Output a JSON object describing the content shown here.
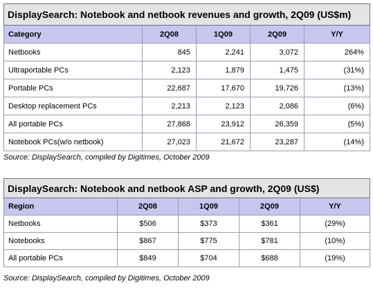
{
  "table1": {
    "title": "DisplaySearch: Notebook and netbook revenues and growth, 2Q09 (US$m)",
    "headers": [
      "Category",
      "2Q08",
      "1Q09",
      "2Q09",
      "Y/Y"
    ],
    "rows": [
      [
        "Netbooks",
        "845",
        "2,241",
        "3,072",
        "264%"
      ],
      [
        "Ultraportable PCs",
        "2,123",
        "1,879",
        "1,475",
        "(31%)"
      ],
      [
        "Portable PCs",
        "22,687",
        "17,670",
        "19,726",
        "(13%)"
      ],
      [
        "Desktop replacement PCs",
        "2,213",
        "2,123",
        "2,086",
        "(6%)"
      ],
      [
        "All portable PCs",
        "27,868",
        "23,912",
        "26,359",
        "(5%)"
      ],
      [
        "Notebook PCs(w/o netbook)",
        "27,023",
        "21,672",
        "23,287",
        "(14%)"
      ]
    ],
    "source": "Source: DisplaySearch, compiled by Digitimes, October 2009"
  },
  "table2": {
    "title": "DisplaySearch: Notebook and netbook ASP and growth, 2Q09 (US$)",
    "headers": [
      "Region",
      "2Q08",
      "1Q09",
      "2Q09",
      "Y/Y"
    ],
    "rows": [
      [
        "Netbooks",
        "$506",
        "$373",
        "$361",
        "(29%)"
      ],
      [
        "Notebooks",
        "$867",
        "$775",
        "$781",
        "(10%)"
      ],
      [
        "All portable PCs",
        "$849",
        "$704",
        "$688",
        "(19%)"
      ]
    ],
    "source": "Source: DisplaySearch, compiled by Digitimes, October 2009"
  }
}
